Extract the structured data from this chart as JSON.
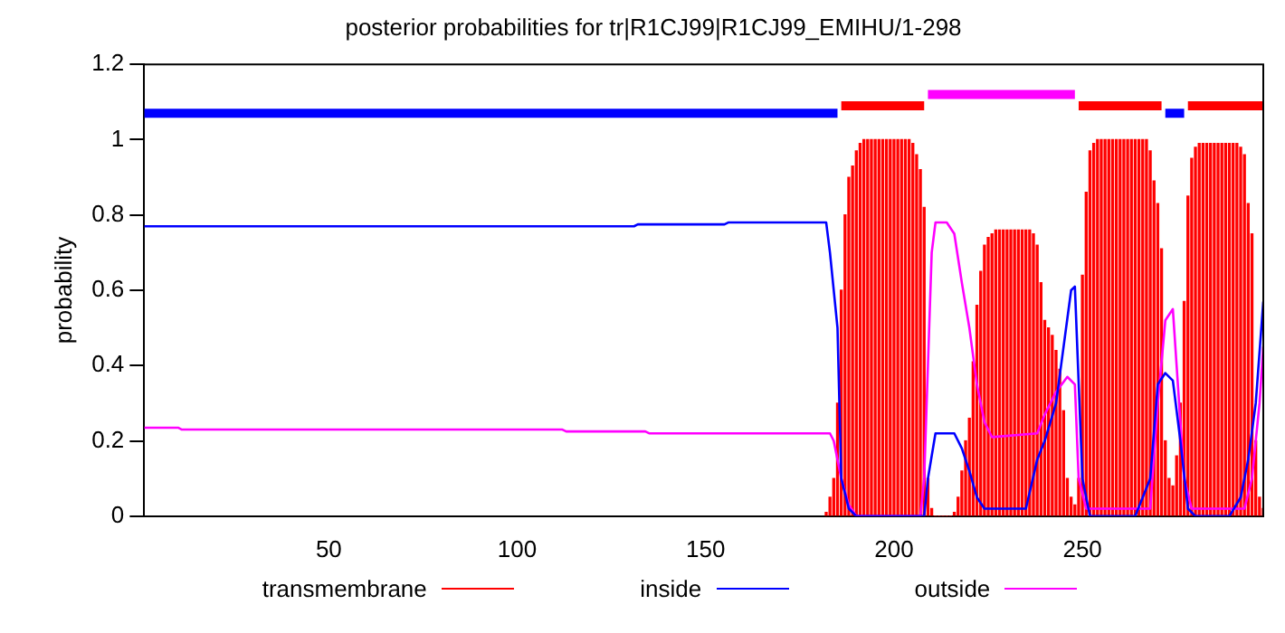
{
  "chart_data": {
    "type": "line",
    "title": "posterior probabilities for tr|R1CJ99|R1CJ99_EMIHU/1-298",
    "ylabel": "probability",
    "xlim": [
      1,
      298
    ],
    "xticks": [
      50,
      100,
      150,
      200,
      250
    ],
    "ylim": [
      0,
      1.2
    ],
    "yticks": [
      0,
      0.2,
      0.4,
      0.6,
      0.8,
      1,
      1.2
    ],
    "grid": false,
    "legend": "bottom",
    "series": [
      {
        "name": "transmembrane",
        "type": "bar",
        "color": "#ff0000",
        "x": [
          182,
          183,
          184,
          185,
          186,
          187,
          188,
          189,
          190,
          191,
          192,
          193,
          194,
          195,
          196,
          197,
          198,
          199,
          200,
          201,
          202,
          203,
          204,
          205,
          206,
          207,
          208,
          209,
          210,
          211,
          212,
          213,
          214,
          215,
          216,
          217,
          218,
          219,
          220,
          221,
          222,
          223,
          224,
          225,
          226,
          227,
          228,
          229,
          230,
          231,
          232,
          233,
          234,
          235,
          236,
          237,
          238,
          239,
          240,
          241,
          242,
          243,
          244,
          245,
          246,
          247,
          248,
          249,
          250,
          251,
          252,
          253,
          254,
          255,
          256,
          257,
          258,
          259,
          260,
          261,
          262,
          263,
          264,
          265,
          266,
          267,
          268,
          269,
          270,
          271,
          272,
          273,
          274,
          275,
          276,
          277,
          278,
          279,
          280,
          281,
          282,
          283,
          284,
          285,
          286,
          287,
          288,
          289,
          290,
          291,
          292,
          293,
          294,
          295,
          296,
          297,
          298
        ],
        "values": [
          0.01,
          0.05,
          0.1,
          0.3,
          0.6,
          0.8,
          0.9,
          0.93,
          0.97,
          0.99,
          1,
          1,
          1,
          1,
          1,
          1,
          1,
          1,
          1,
          1,
          1,
          1,
          1,
          0.99,
          0.96,
          0.92,
          0.82,
          0.1,
          0.02,
          0,
          0,
          0,
          0,
          0,
          0.01,
          0.05,
          0.12,
          0.2,
          0.26,
          0.41,
          0.56,
          0.65,
          0.72,
          0.74,
          0.75,
          0.76,
          0.76,
          0.76,
          0.76,
          0.76,
          0.76,
          0.76,
          0.76,
          0.76,
          0.76,
          0.75,
          0.72,
          0.62,
          0.52,
          0.5,
          0.48,
          0.44,
          0.39,
          0.28,
          0.1,
          0.05,
          0.03,
          0.1,
          0.64,
          0.86,
          0.97,
          0.99,
          1,
          1,
          1,
          1,
          1,
          1,
          1,
          1,
          1,
          1,
          1,
          1,
          1,
          1,
          0.97,
          0.89,
          0.83,
          0.71,
          0.2,
          0.1,
          0.08,
          0.16,
          0.3,
          0.57,
          0.85,
          0.95,
          0.98,
          0.99,
          0.99,
          0.99,
          0.99,
          0.99,
          0.99,
          0.99,
          0.99,
          0.99,
          0.99,
          0.99,
          0.98,
          0.96,
          0.83,
          0.75,
          0.2,
          0.05,
          0.02
        ]
      },
      {
        "name": "inside",
        "color": "#0000ff",
        "x": [
          1,
          131,
          132,
          155,
          156,
          182,
          183,
          185,
          186,
          188,
          190,
          208,
          209,
          211,
          216,
          218,
          220,
          222,
          224,
          235,
          238,
          240,
          243,
          245,
          247,
          248,
          250,
          252,
          264,
          268,
          270,
          272,
          274,
          276,
          278,
          280,
          289,
          292,
          294,
          296,
          298
        ],
        "values": [
          0.77,
          0.77,
          0.775,
          0.775,
          0.78,
          0.78,
          0.7,
          0.5,
          0.1,
          0.02,
          0,
          0,
          0.1,
          0.22,
          0.22,
          0.18,
          0.12,
          0.05,
          0.02,
          0.02,
          0.15,
          0.2,
          0.3,
          0.45,
          0.6,
          0.61,
          0.1,
          0,
          0,
          0.1,
          0.35,
          0.38,
          0.36,
          0.2,
          0.02,
          0,
          0,
          0.05,
          0.15,
          0.3,
          0.57
        ]
      },
      {
        "name": "outside",
        "color": "#ff00ff",
        "x": [
          1,
          10,
          11,
          112,
          113,
          134,
          135,
          183,
          184,
          186,
          188,
          190,
          207,
          208,
          209,
          210,
          211,
          214,
          216,
          218,
          220,
          222,
          224,
          226,
          238,
          240,
          243,
          246,
          248,
          249,
          251,
          268,
          270,
          272,
          274,
          275,
          277,
          279,
          293,
          295,
          297,
          298
        ],
        "values": [
          0.235,
          0.235,
          0.23,
          0.23,
          0.225,
          0.225,
          0.22,
          0.22,
          0.2,
          0.1,
          0.03,
          0,
          0,
          0.1,
          0.4,
          0.7,
          0.78,
          0.78,
          0.75,
          0.62,
          0.5,
          0.35,
          0.25,
          0.21,
          0.22,
          0.27,
          0.33,
          0.37,
          0.35,
          0.1,
          0.02,
          0.02,
          0.3,
          0.52,
          0.55,
          0.4,
          0.1,
          0.02,
          0.02,
          0.1,
          0.3,
          0.45
        ]
      },
      {
        "color": "#0000ff",
        "x": [
          1,
          185
        ],
        "values": [
          1.07,
          1.07
        ]
      },
      {
        "color": "#ff0000",
        "x": [
          186,
          208
        ],
        "values": [
          1.09,
          1.09
        ]
      },
      {
        "color": "#ff00ff",
        "x": [
          209,
          248
        ],
        "values": [
          1.12,
          1.12
        ]
      },
      {
        "color": "#ff0000",
        "x": [
          249,
          271
        ],
        "values": [
          1.09,
          1.09
        ]
      },
      {
        "color": "#0000ff",
        "x": [
          272,
          277
        ],
        "values": [
          1.07,
          1.07
        ]
      },
      {
        "color": "#ff0000",
        "x": [
          278,
          298
        ],
        "values": [
          1.09,
          1.09
        ]
      }
    ]
  }
}
